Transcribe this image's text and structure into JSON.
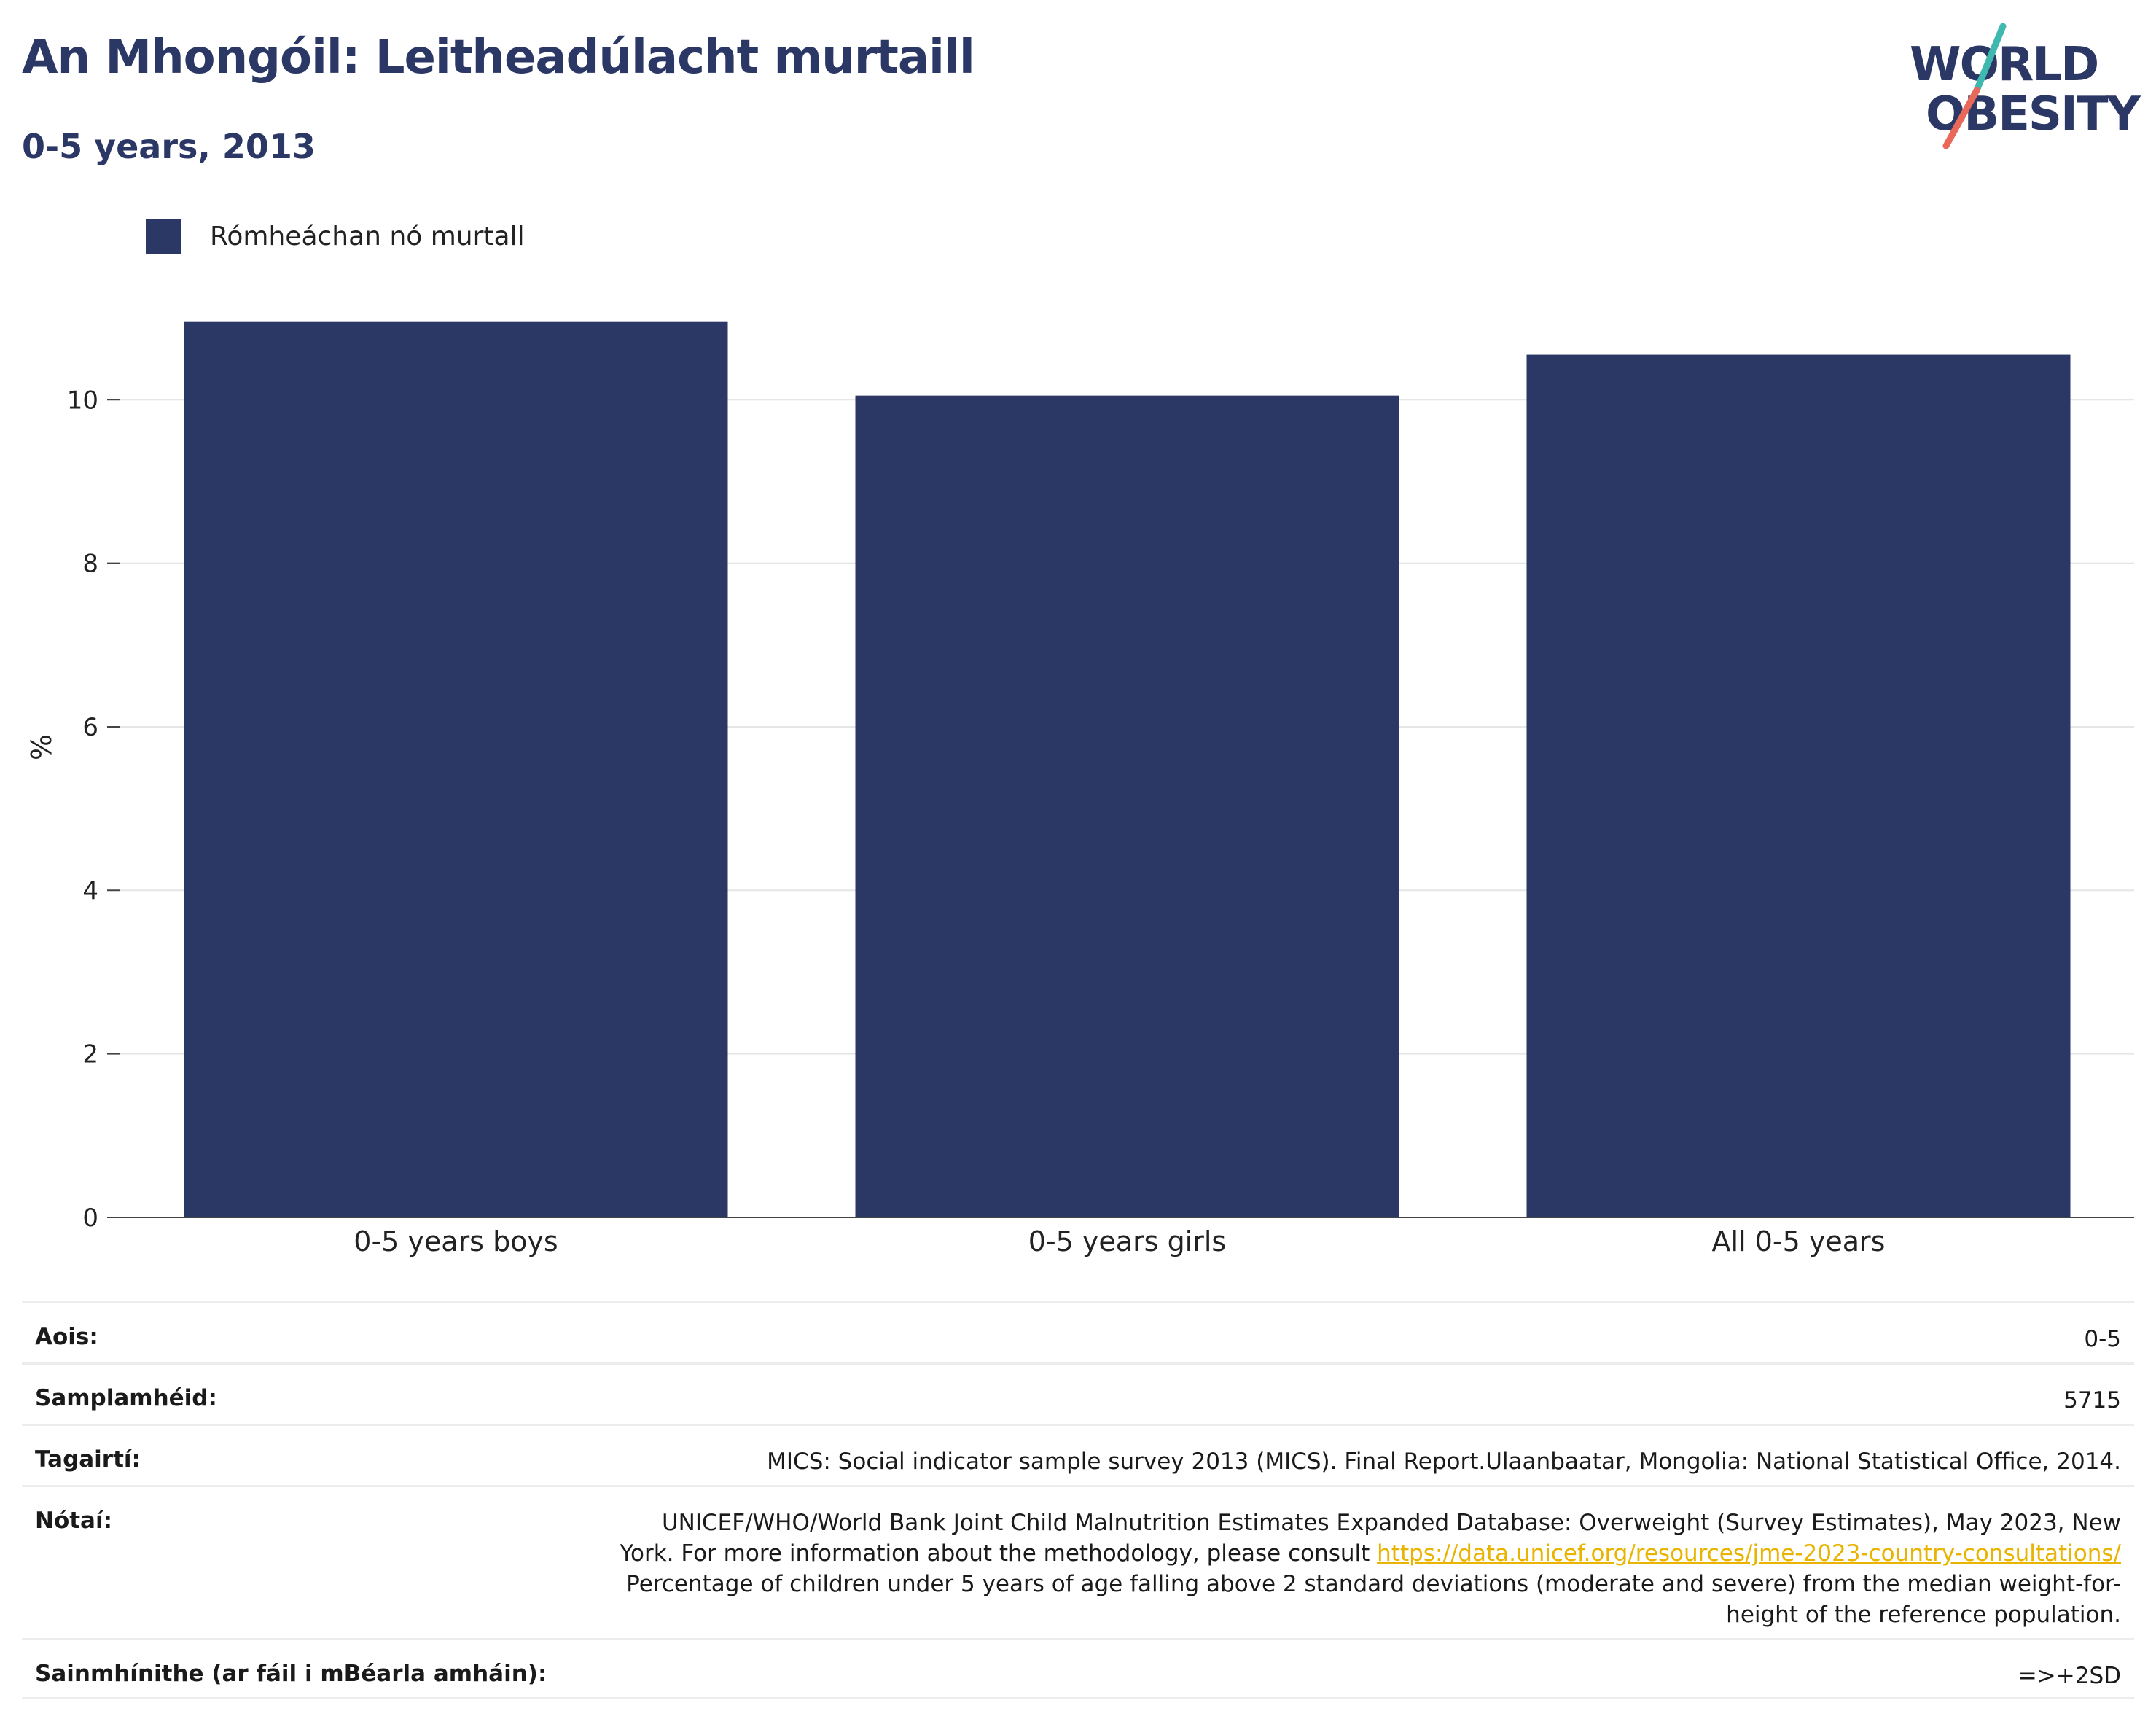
{
  "header": {
    "title": "An Mhongóil: Leitheadúlacht murtaill",
    "subtitle": "0-5 years, 2013"
  },
  "logo": {
    "line1": "WORLD",
    "line2": "OBESITY",
    "colors": {
      "text": "#2b3764",
      "slash_top": "#3fb8b0",
      "slash_bottom": "#e8685a"
    }
  },
  "legend": {
    "label": "Rómheáchan nó murtall",
    "color": "#2b3764"
  },
  "chart_data": {
    "type": "bar",
    "categories": [
      "0-5 years boys",
      "0-5 years girls",
      "All 0-5 years"
    ],
    "series": [
      {
        "name": "Rómheáchan nó murtall",
        "values": [
          10.95,
          10.05,
          10.55
        ],
        "color": "#2b3764"
      }
    ],
    "ylabel": "%",
    "ylim": [
      0,
      11.5
    ],
    "yticks": [
      0,
      2,
      4,
      6,
      8,
      10
    ],
    "grid": true,
    "legend_position": "top-left"
  },
  "info": {
    "rows": [
      {
        "key": "Aois:",
        "value": "0-5"
      },
      {
        "key": "Samplamhéid:",
        "value": "5715"
      },
      {
        "key": "Tagairtí:",
        "value": "MICS: Social indicator sample survey 2013 (MICS). Final Report.Ulaanbaatar, Mongolia: National Statistical Office, 2014."
      },
      {
        "key": "Nótaí:",
        "value_line1": "UNICEF/WHO/World Bank Joint Child Malnutrition Estimates Expanded Database: Overweight (Survey Estimates), May 2023, New",
        "value_line2_prefix": "York. For more information about the methodology, please consult ",
        "link": "https://data.unicef.org/resources/jme-2023-country-consultations/",
        "value_line3": "Percentage of children under 5 years of age falling above 2 standard deviations (moderate and severe) from the median weight-for-",
        "value_line4": "height of the reference population."
      },
      {
        "key": "Sainmhínithe (ar fáil i mBéarla amháin):",
        "value": "=>+2SD"
      }
    ]
  }
}
